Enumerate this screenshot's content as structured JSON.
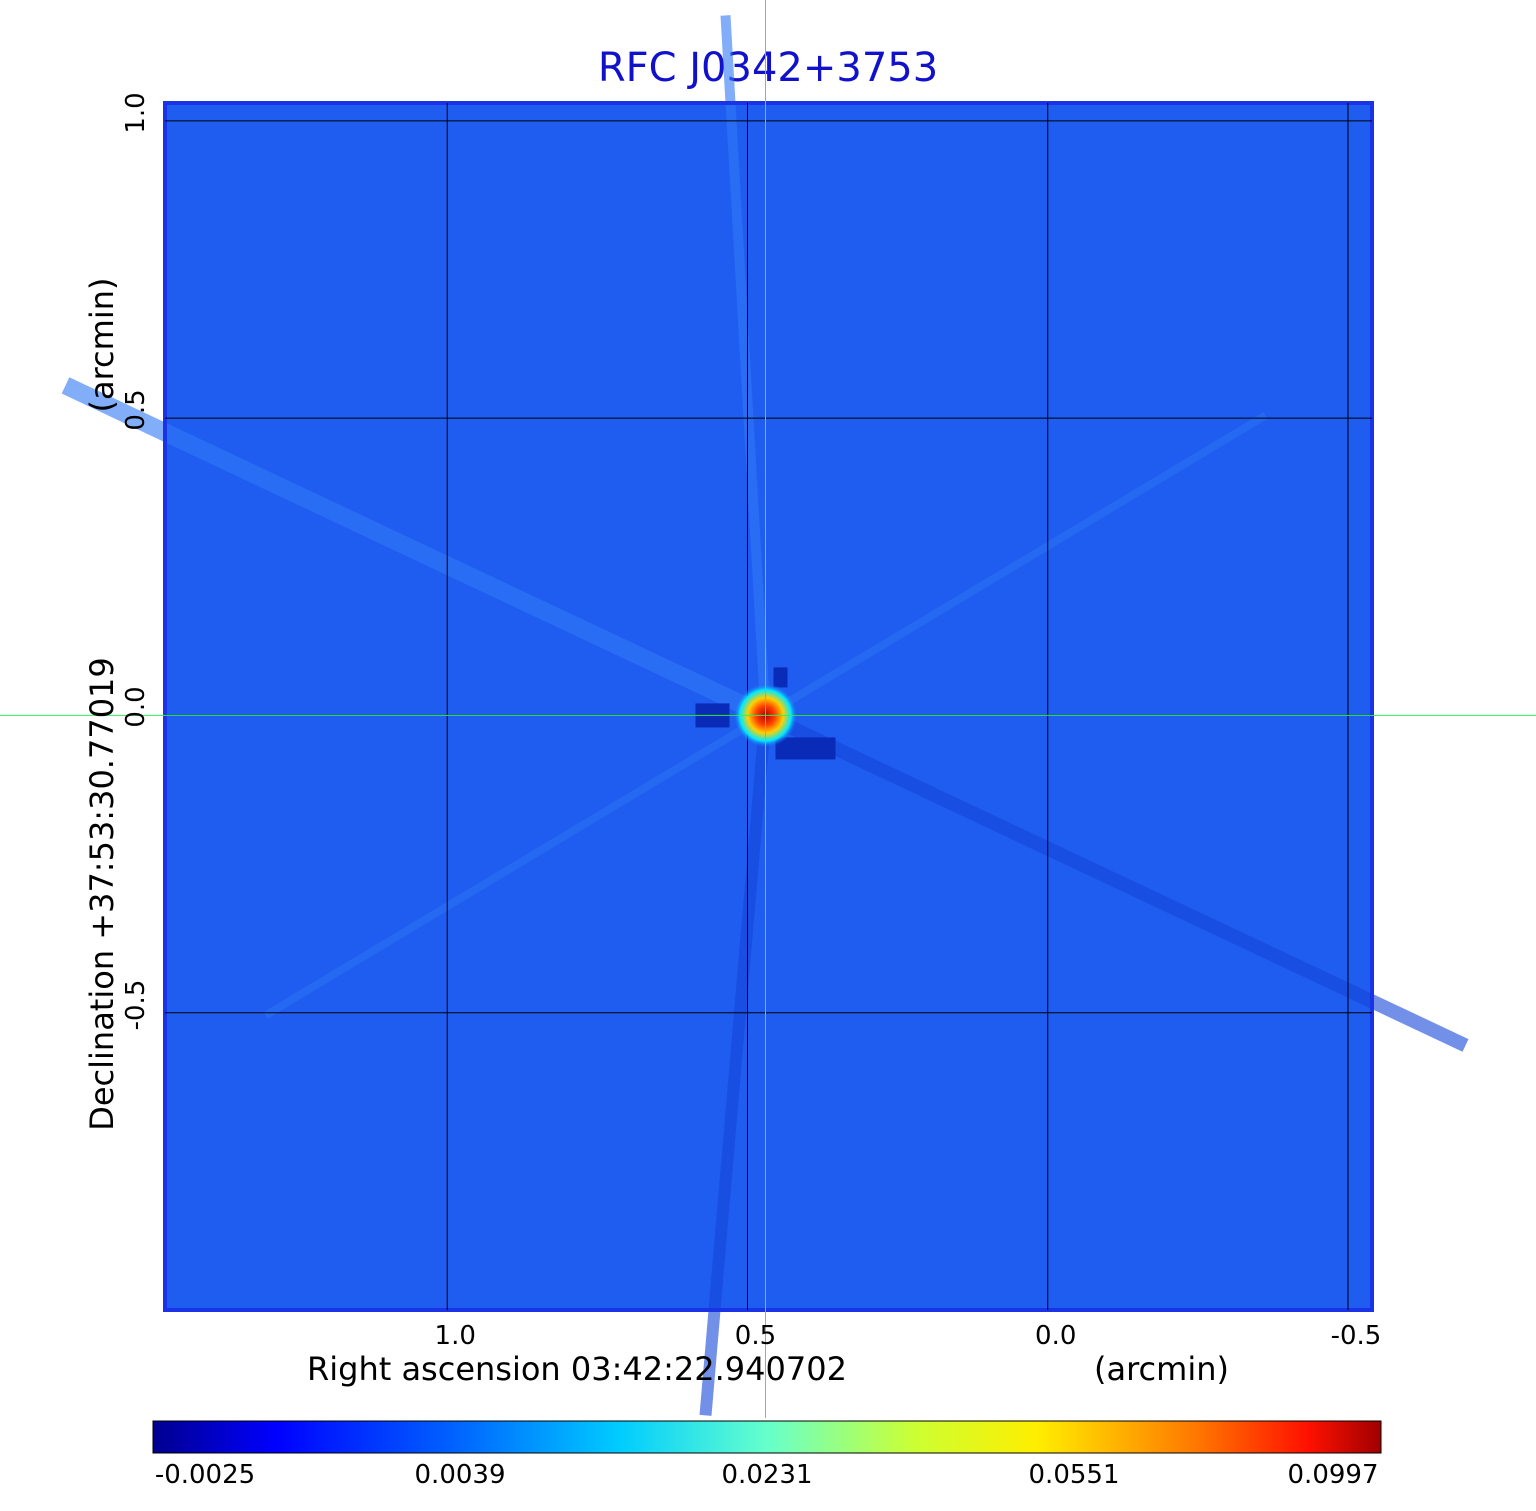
{
  "chart_data": {
    "type": "heatmap",
    "title": "RFC J0342+3753",
    "xlabel": "Right ascension  03:42:22.940702",
    "xunit": "(arcmin)",
    "ylabel": "Declination  +37:53:30.77019",
    "yunit": "(arcmin)",
    "x_ticks": [
      "1.0",
      "0.5",
      "0.0",
      "-0.5"
    ],
    "x_tick_values": [
      1.0,
      0.5,
      0.0,
      -0.5
    ],
    "y_ticks": [
      "1.0",
      "0.5",
      "0.0",
      "-0.5"
    ],
    "y_tick_values": [
      1.0,
      0.5,
      0.0,
      -0.5
    ],
    "xlim": [
      1.47,
      -0.54
    ],
    "ylim": [
      -1.0,
      1.03
    ],
    "colorbar_ticks": [
      "-0.0025",
      "0.0039",
      "0.0231",
      "0.0551",
      "0.0997"
    ],
    "colorbar_values": [
      -0.0025,
      0.0039,
      0.0231,
      0.0551,
      0.0997
    ],
    "peak": {
      "x": 0.47,
      "y": 0.0
    },
    "crosshair": {
      "x": 0.47,
      "y": 0.0
    },
    "grid": true,
    "colormap": "jet"
  }
}
